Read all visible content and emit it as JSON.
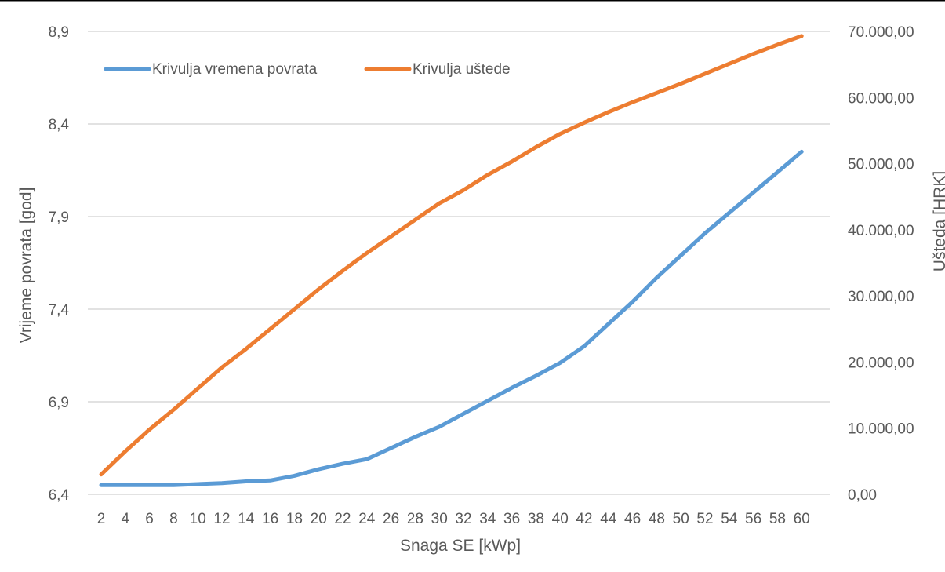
{
  "chart_data": {
    "type": "line",
    "xlabel": "Snaga SE [kWp]",
    "ylabel_left": "Vrijeme povrata [god]",
    "ylabel_right": "Ušteda [HRK]",
    "x_ticks": [
      "2",
      "4",
      "6",
      "8",
      "10",
      "12",
      "14",
      "16",
      "18",
      "20",
      "22",
      "24",
      "26",
      "28",
      "30",
      "32",
      "34",
      "36",
      "38",
      "40",
      "42",
      "44",
      "46",
      "48",
      "50",
      "52",
      "54",
      "56",
      "58",
      "60"
    ],
    "y_left_ticks": [
      "6,4",
      "6,9",
      "7,4",
      "7,9",
      "8,4",
      "8,9"
    ],
    "y_left_ticks_values": [
      6.4,
      6.9,
      7.4,
      7.9,
      8.4,
      8.9
    ],
    "y_left_lim": [
      6.4,
      8.9
    ],
    "y_right_ticks": [
      "0,00",
      "10.000,00",
      "20.000,00",
      "30.000,00",
      "40.000,00",
      "50.000,00",
      "60.000,00",
      "70.000,00"
    ],
    "y_right_ticks_values": [
      0,
      10000,
      20000,
      30000,
      40000,
      50000,
      60000,
      70000
    ],
    "y_right_lim": [
      0,
      70000
    ],
    "grid": true,
    "legend_position": "top-left",
    "series": [
      {
        "name": "Krivulja vremena povrata",
        "axis": "left",
        "color": "#5B9BD5",
        "x": [
          2,
          4,
          6,
          8,
          10,
          12,
          14,
          16,
          18,
          20,
          22,
          24,
          26,
          28,
          30,
          32,
          34,
          36,
          38,
          40,
          42,
          44,
          46,
          48,
          50,
          52,
          54,
          56,
          58,
          60
        ],
        "values": [
          6.45,
          6.45,
          6.45,
          6.45,
          6.455,
          6.46,
          6.47,
          6.475,
          6.5,
          6.535,
          6.565,
          6.59,
          6.65,
          6.71,
          6.765,
          6.835,
          6.905,
          6.975,
          7.04,
          7.11,
          7.2,
          7.32,
          7.44,
          7.57,
          7.69,
          7.81,
          7.92,
          8.03,
          8.14,
          8.25
        ]
      },
      {
        "name": "Krivulja uštede",
        "axis": "right",
        "color": "#ED7D31",
        "x": [
          2,
          4,
          6,
          8,
          10,
          12,
          14,
          16,
          18,
          20,
          22,
          24,
          26,
          28,
          30,
          32,
          34,
          36,
          38,
          40,
          42,
          44,
          46,
          48,
          50,
          52,
          54,
          56,
          58,
          60
        ],
        "values": [
          3000,
          6500,
          9800,
          12800,
          16000,
          19200,
          22000,
          25000,
          28000,
          31000,
          33800,
          36500,
          39000,
          41500,
          44000,
          46000,
          48300,
          50300,
          52500,
          54500,
          56200,
          57800,
          59300,
          60700,
          62100,
          63600,
          65100,
          66600,
          68000,
          69300
        ]
      }
    ]
  }
}
